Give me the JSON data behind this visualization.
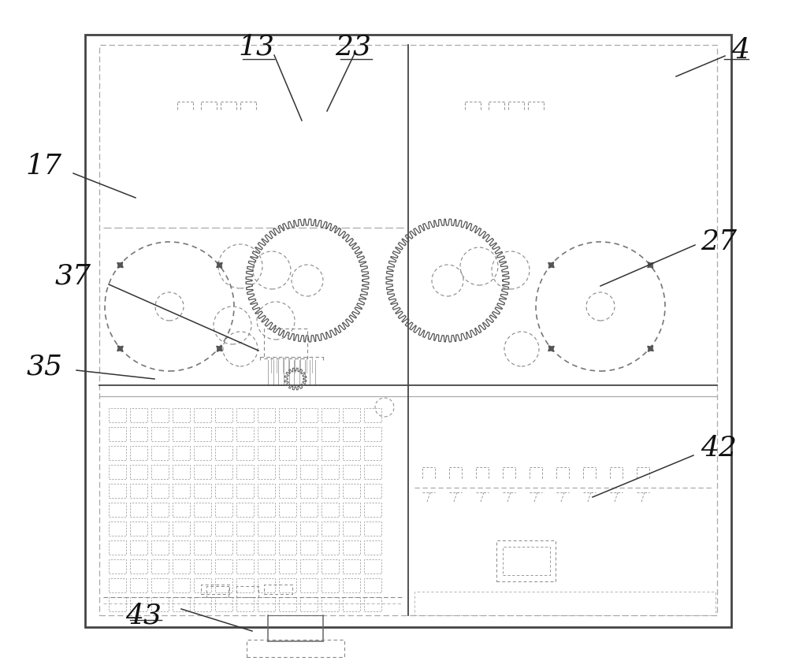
{
  "bg_color": "#ffffff",
  "line_color": "#444444",
  "label_color": "#111111",
  "fig_width": 10.0,
  "fig_height": 8.54,
  "dpi": 100
}
